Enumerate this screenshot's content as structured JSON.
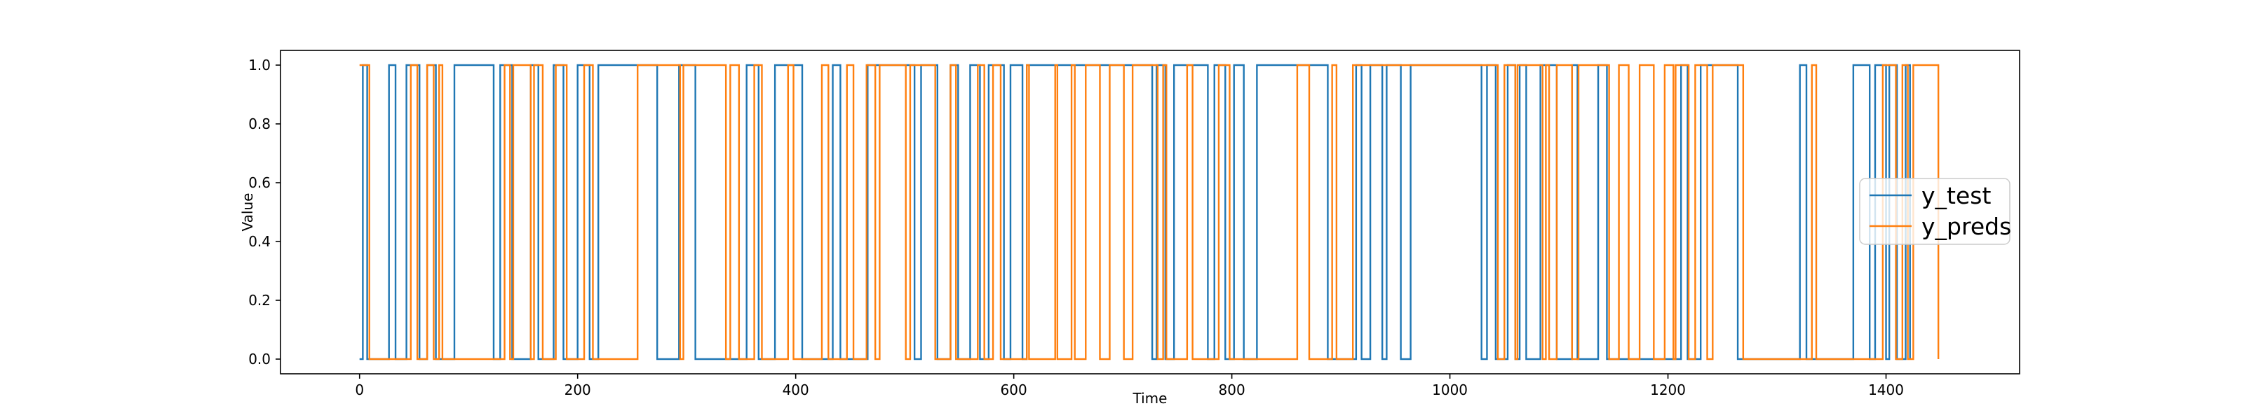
{
  "chart_data": {
    "type": "line",
    "title": "",
    "xlabel": "Time",
    "ylabel": "Value",
    "xlim": [
      -72.5,
      1522.5
    ],
    "ylim": [
      -0.05,
      1.05
    ],
    "xticks": [
      0,
      200,
      400,
      600,
      800,
      1000,
      1200,
      1400
    ],
    "yticks": [
      0.0,
      0.2,
      0.4,
      0.6,
      0.8,
      1.0
    ],
    "xtick_labels": [
      "0",
      "200",
      "400",
      "600",
      "800",
      "1000",
      "1200",
      "1400"
    ],
    "ytick_labels": [
      "0.0",
      "0.2",
      "0.4",
      "0.6",
      "0.8",
      "1.0"
    ],
    "grid": false,
    "legend_position": "center-right",
    "step": true,
    "series": [
      {
        "name": "y_test",
        "color": "#1f77b4",
        "x": [
          0,
          3,
          7,
          27,
          33,
          43,
          55,
          62,
          70,
          87,
          123,
          129,
          140,
          157,
          164,
          178,
          187,
          200,
          211,
          219,
          273,
          293,
          308,
          355,
          366,
          381,
          406,
          434,
          441,
          466,
          509,
          515,
          530,
          542,
          549,
          560,
          569,
          577,
          591,
          597,
          608,
          612,
          727,
          731,
          739,
          747,
          778,
          784,
          794,
          802,
          811,
          823,
          888,
          914,
          919,
          927,
          938,
          942,
          955,
          964,
          1029,
          1034,
          1042,
          1053,
          1060,
          1064,
          1070,
          1083,
          1098,
          1112,
          1117,
          1136,
          1144,
          1212,
          1218,
          1230,
          1264,
          1321,
          1327,
          1370,
          1385,
          1390,
          1400,
          1403,
          1410,
          1418,
          1422
        ],
        "values": [
          0,
          1,
          0,
          1,
          0,
          1,
          0,
          1,
          0,
          1,
          0,
          1,
          0,
          1,
          0,
          1,
          0,
          1,
          0,
          1,
          0,
          1,
          0,
          1,
          0,
          1,
          0,
          1,
          0,
          1,
          0,
          1,
          0,
          1,
          0,
          1,
          0,
          1,
          0,
          1,
          0,
          1,
          0,
          1,
          0,
          1,
          0,
          1,
          0,
          1,
          0,
          1,
          0,
          1,
          0,
          1,
          0,
          1,
          0,
          1,
          0,
          1,
          0,
          1,
          0,
          1,
          0,
          1,
          0,
          1,
          0,
          1,
          0,
          1,
          0,
          1,
          0,
          1,
          0,
          1,
          0,
          1,
          0,
          1,
          0,
          1,
          0
        ]
      },
      {
        "name": "y_preds",
        "color": "#ff7f0e",
        "x": [
          0,
          5,
          9,
          47,
          53,
          62,
          68,
          73,
          76,
          133,
          138,
          141,
          157,
          160,
          168,
          180,
          190,
          206,
          214,
          255,
          274,
          294,
          297,
          305,
          336,
          340,
          348,
          362,
          369,
          393,
          398,
          424,
          430,
          447,
          453,
          465,
          473,
          477,
          501,
          505,
          528,
          542,
          547,
          567,
          573,
          581,
          588,
          612,
          614,
          638,
          640,
          653,
          656,
          666,
          679,
          688,
          701,
          709,
          732,
          737,
          740,
          759,
          764,
          788,
          798,
          860,
          871,
          892,
          896,
          911,
          1044,
          1050,
          1060,
          1062,
          1085,
          1088,
          1091,
          1098,
          1112,
          1118,
          1146,
          1155,
          1164,
          1174,
          1187,
          1197,
          1205,
          1207,
          1219,
          1225,
          1236,
          1241,
          1269,
          1332,
          1336,
          1397,
          1409,
          1415,
          1420,
          1425,
          1448
        ],
        "values": [
          1,
          1,
          0,
          1,
          0,
          1,
          0,
          1,
          0,
          1,
          0,
          1,
          0,
          1,
          0,
          1,
          0,
          1,
          0,
          1,
          1,
          0,
          1,
          1,
          0,
          1,
          0,
          1,
          0,
          1,
          0,
          1,
          0,
          1,
          0,
          1,
          0,
          1,
          0,
          1,
          0,
          1,
          0,
          1,
          0,
          1,
          0,
          1,
          0,
          1,
          0,
          1,
          0,
          1,
          0,
          1,
          0,
          1,
          0,
          1,
          0,
          1,
          0,
          1,
          0,
          1,
          0,
          1,
          0,
          1,
          0,
          1,
          0,
          1,
          0,
          1,
          0,
          1,
          0,
          1,
          0,
          1,
          0,
          1,
          0,
          1,
          0,
          1,
          0,
          1,
          0,
          1,
          0,
          1,
          0,
          1,
          0,
          1,
          0,
          1,
          0
        ]
      }
    ]
  }
}
